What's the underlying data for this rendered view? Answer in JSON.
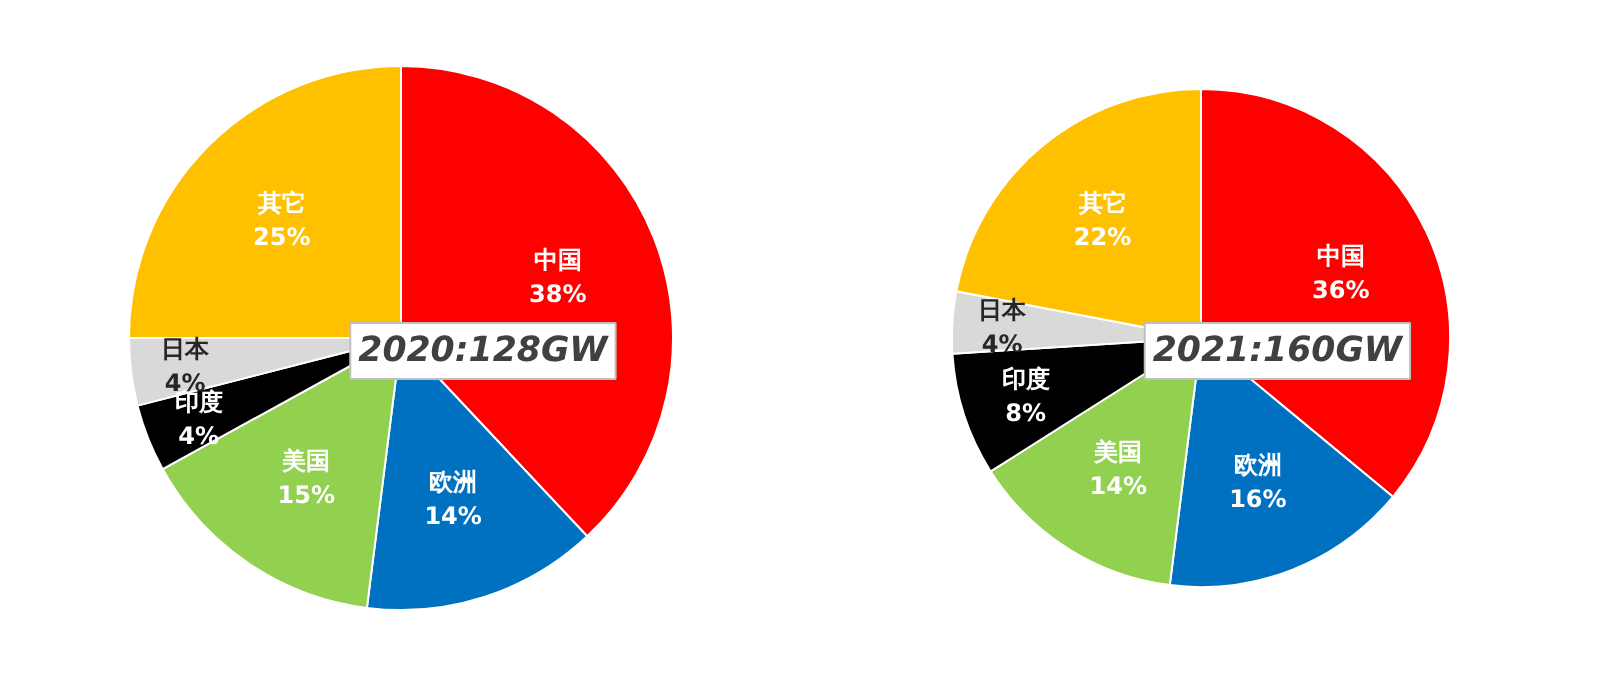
{
  "chart_data": [
    {
      "type": "pie",
      "title": "2020:128GW",
      "categories": [
        "中国",
        "欧洲",
        "美国",
        "印度",
        "日本",
        "其它"
      ],
      "values": [
        38,
        14,
        15,
        4,
        4,
        25
      ],
      "colors": [
        "#ff0000",
        "#0070c0",
        "#92d050",
        "#000000",
        "#d9d9d9",
        "#ffc000"
      ],
      "value_labels": [
        "38%",
        "14%",
        "15%",
        "4%",
        "4%",
        "25%"
      ]
    },
    {
      "type": "pie",
      "title": "2021:160GW",
      "categories": [
        "中国",
        "欧洲",
        "美国",
        "印度",
        "日本",
        "其它"
      ],
      "values": [
        36,
        16,
        14,
        8,
        4,
        22
      ],
      "colors": [
        "#ff0000",
        "#0070c0",
        "#92d050",
        "#000000",
        "#d9d9d9",
        "#ffc000"
      ],
      "value_labels": [
        "36%",
        "16%",
        "14%",
        "8%",
        "4%",
        "22%"
      ]
    }
  ]
}
